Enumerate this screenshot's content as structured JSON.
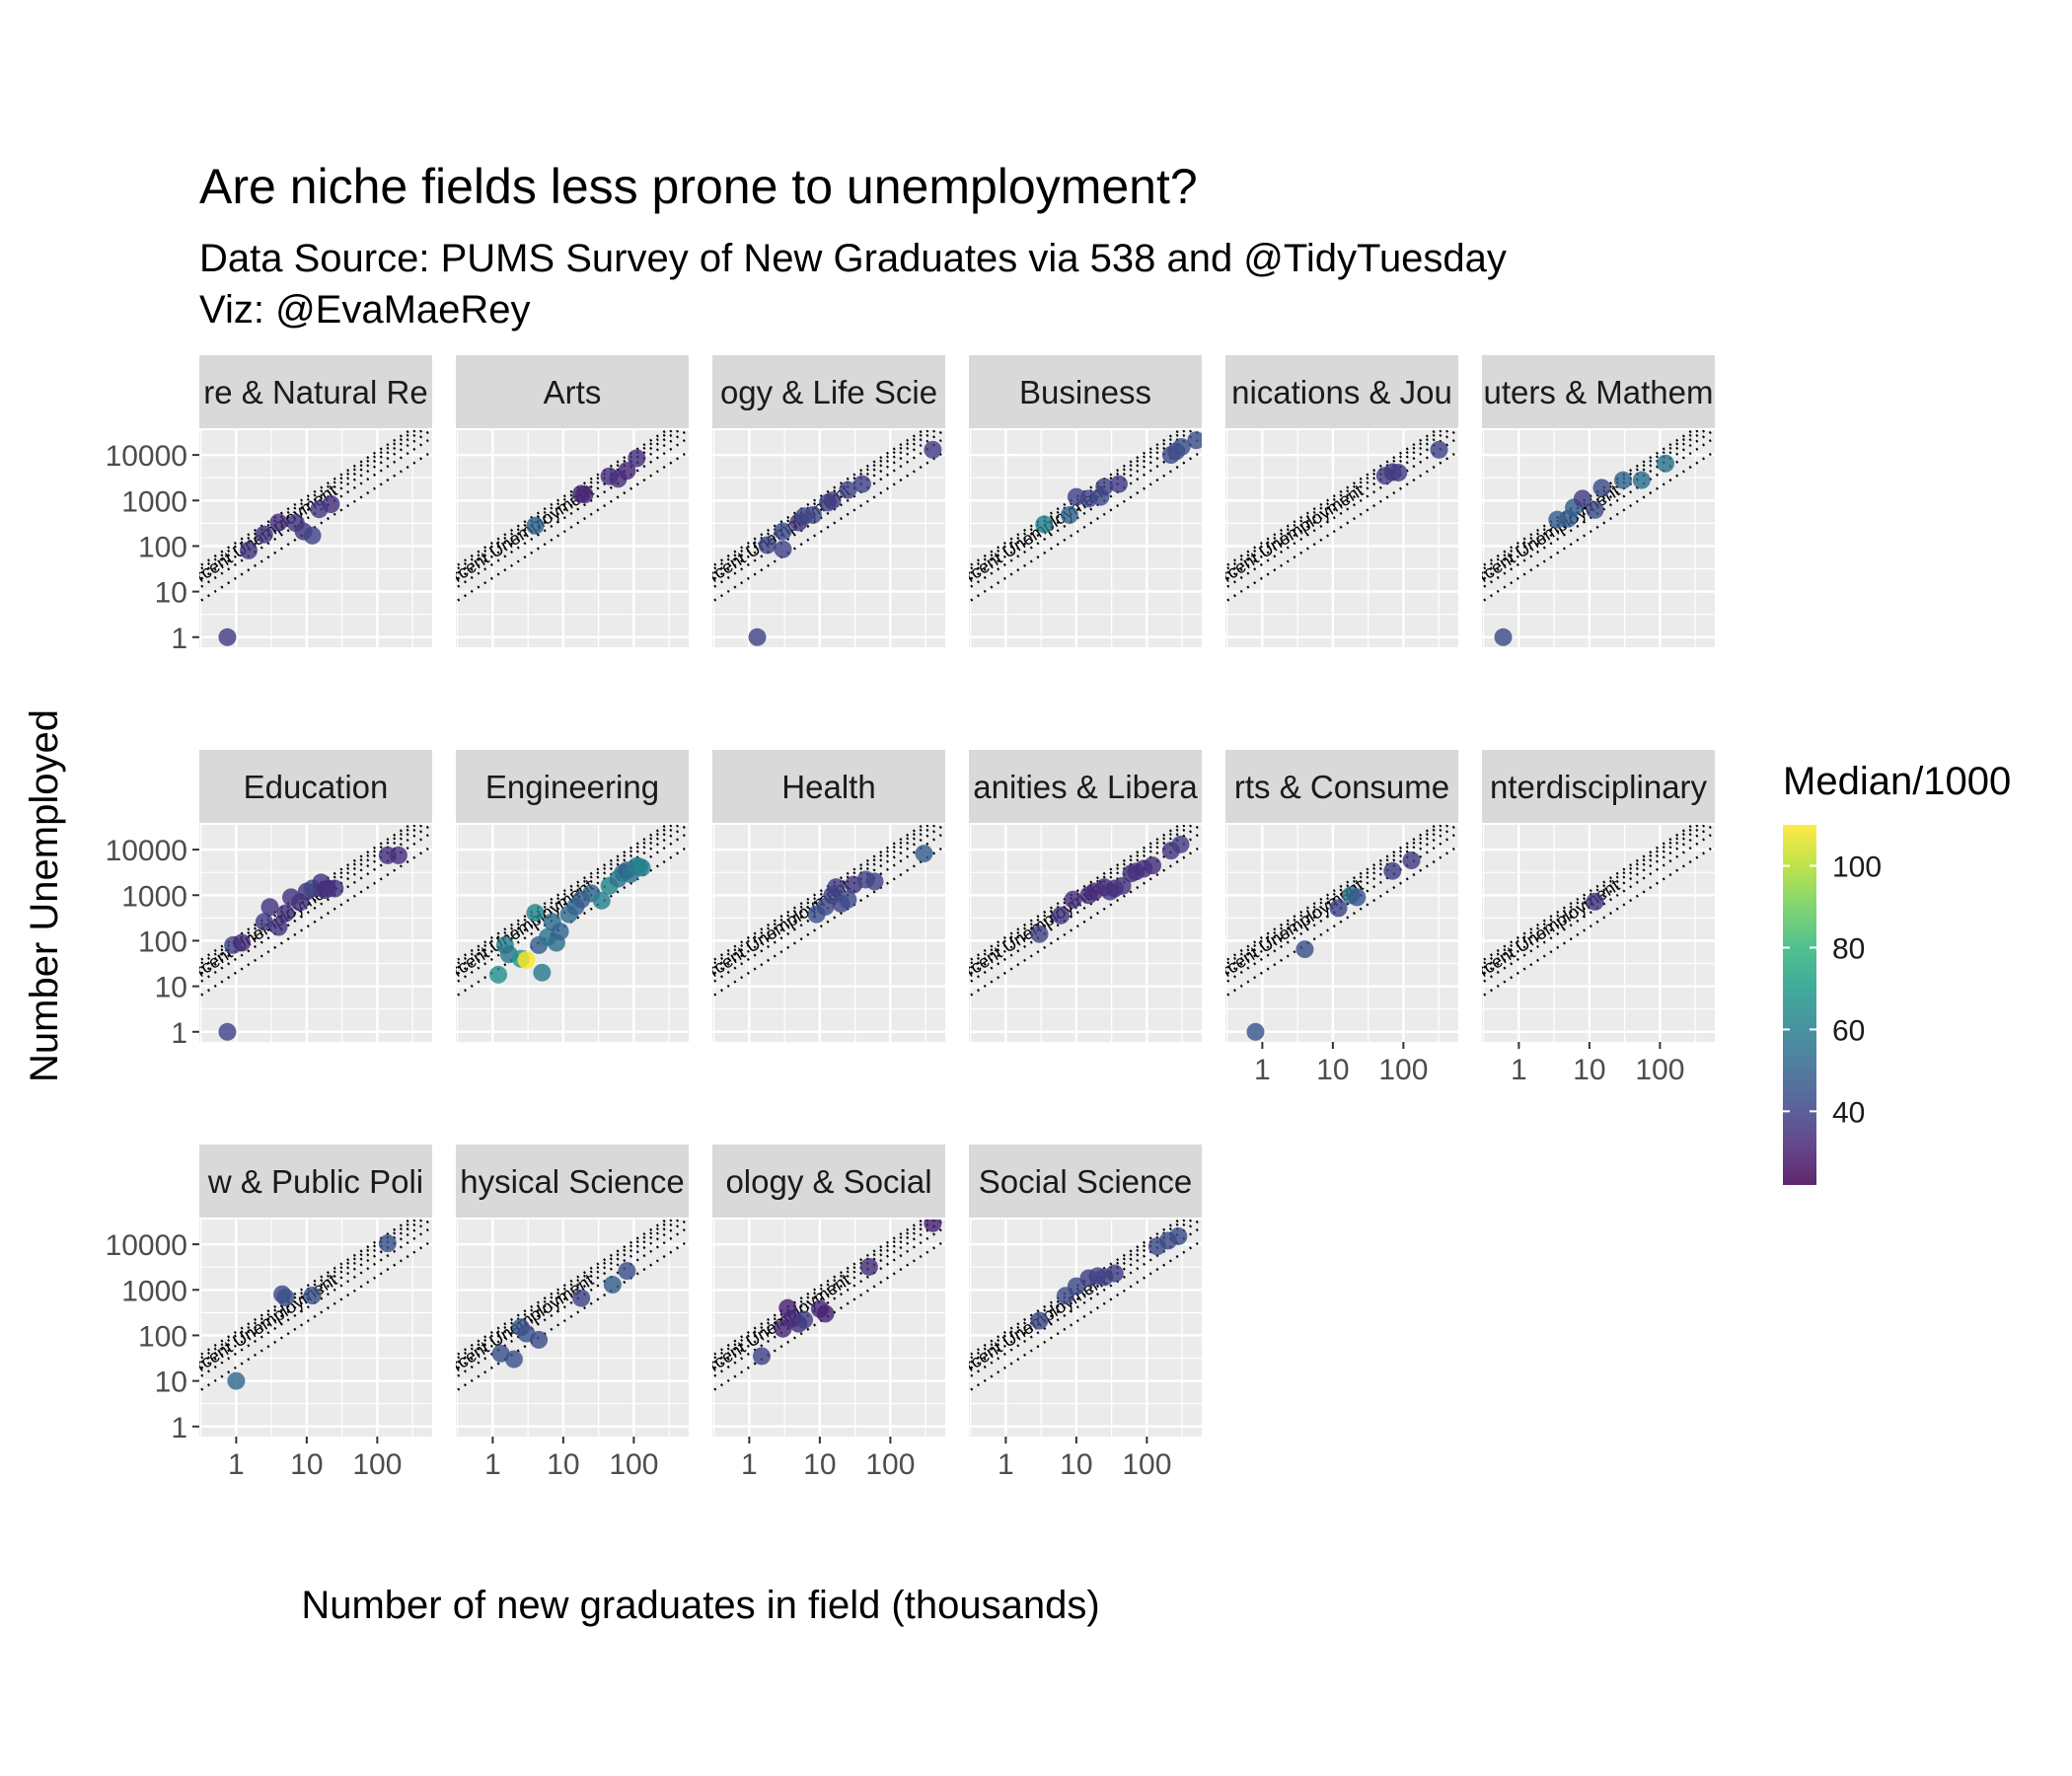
{
  "title": "Are niche fields less prone to unemployment?",
  "subtitle_lines": [
    "Data Source: PUMS Survey of New Graduates via 538 and @TidyTuesday",
    "Viz: @EvaMaeRey"
  ],
  "chart_data": {
    "type": "scatter",
    "xlabel": "Number of new graduates in field (thousands)",
    "ylabel": "Number Unemployed",
    "x_scale": "log10",
    "y_scale": "log10",
    "xlim": [
      0.3,
      600
    ],
    "ylim": [
      0.6,
      35000
    ],
    "x_ticks": [
      1,
      10,
      100
    ],
    "x_tick_labels": [
      "1",
      "10",
      "100"
    ],
    "y_ticks": [
      1,
      10,
      100,
      1000,
      10000
    ],
    "y_tick_labels": [
      "1",
      "10",
      "100",
      "1000",
      "10000"
    ],
    "grid": true,
    "reference_lines_label": "Percent Unemployment",
    "reference_rates_percent": [
      2,
      4,
      6,
      8,
      10,
      12
    ],
    "color_legend": {
      "title": "Median/1000",
      "ticks": [
        40,
        60,
        80,
        100
      ],
      "range": [
        22,
        110
      ],
      "position": "right",
      "colors": [
        "#440154",
        "#3b528b",
        "#21908c",
        "#5dc863",
        "#fde725"
      ]
    },
    "panels": [
      {
        "label": "Agriculture & Natural Resources",
        "visible_label": "re & Natural Re",
        "points": [
          [
            0.75,
            1,
            38
          ],
          [
            1.5,
            80,
            36
          ],
          [
            2.5,
            180,
            36
          ],
          [
            4,
            330,
            34
          ],
          [
            7,
            320,
            36
          ],
          [
            9,
            210,
            36
          ],
          [
            12,
            170,
            40
          ],
          [
            15,
            640,
            38
          ],
          [
            22,
            830,
            34
          ]
        ]
      },
      {
        "label": "Arts",
        "visible_label": "Arts",
        "points": [
          [
            4,
            280,
            50
          ],
          [
            18,
            1400,
            30
          ],
          [
            20,
            1350,
            32
          ],
          [
            45,
            3400,
            34
          ],
          [
            60,
            3000,
            34
          ],
          [
            80,
            4500,
            32
          ],
          [
            110,
            8500,
            34
          ]
        ]
      },
      {
        "label": "Biology & Life Science",
        "visible_label": "ogy & Life Scie",
        "points": [
          [
            1.3,
            1,
            40
          ],
          [
            1.8,
            105,
            40
          ],
          [
            3,
            210,
            42
          ],
          [
            3,
            85,
            40
          ],
          [
            5,
            330,
            36
          ],
          [
            6,
            450,
            40
          ],
          [
            8,
            480,
            42
          ],
          [
            13,
            900,
            40
          ],
          [
            15,
            1000,
            38
          ],
          [
            25,
            1700,
            40
          ],
          [
            40,
            2300,
            40
          ],
          [
            400,
            13000,
            38
          ]
        ]
      },
      {
        "label": "Business",
        "visible_label": "Business",
        "points": [
          [
            3.5,
            300,
            60
          ],
          [
            8,
            480,
            50
          ],
          [
            10,
            1200,
            40
          ],
          [
            15,
            1100,
            40
          ],
          [
            22,
            1200,
            42
          ],
          [
            25,
            2000,
            40
          ],
          [
            40,
            2300,
            38
          ],
          [
            220,
            10000,
            42
          ],
          [
            260,
            12000,
            42
          ],
          [
            310,
            15000,
            44
          ],
          [
            500,
            21000,
            44
          ]
        ]
      },
      {
        "label": "Communications & Journalism",
        "visible_label": "nications & Jou",
        "points": [
          [
            55,
            3500,
            38
          ],
          [
            70,
            4200,
            38
          ],
          [
            85,
            4100,
            38
          ],
          [
            320,
            13000,
            40
          ]
        ]
      },
      {
        "label": "Computers & Mathematics",
        "visible_label": "uters & Mathem",
        "points": [
          [
            0.6,
            1,
            42
          ],
          [
            3.5,
            380,
            48
          ],
          [
            5,
            400,
            48
          ],
          [
            6,
            700,
            48
          ],
          [
            8,
            1100,
            38
          ],
          [
            12,
            620,
            42
          ],
          [
            15,
            1900,
            42
          ],
          [
            30,
            2800,
            50
          ],
          [
            55,
            2800,
            54
          ],
          [
            120,
            6500,
            56
          ]
        ]
      },
      {
        "label": "Education",
        "visible_label": "Education",
        "points": [
          [
            0.75,
            1,
            40
          ],
          [
            0.9,
            80,
            40
          ],
          [
            1.2,
            90,
            34
          ],
          [
            2.5,
            260,
            38
          ],
          [
            3,
            550,
            36
          ],
          [
            4,
            200,
            36
          ],
          [
            5,
            400,
            34
          ],
          [
            6,
            900,
            36
          ],
          [
            8,
            700,
            36
          ],
          [
            10,
            1200,
            36
          ],
          [
            12,
            1400,
            40
          ],
          [
            16,
            1900,
            36
          ],
          [
            18,
            1300,
            34
          ],
          [
            20,
            1400,
            34
          ],
          [
            25,
            1400,
            36
          ],
          [
            140,
            7500,
            34
          ],
          [
            200,
            7500,
            34
          ]
        ]
      },
      {
        "label": "Engineering",
        "visible_label": "Engineering",
        "points": [
          [
            1.2,
            18,
            66
          ],
          [
            1.5,
            80,
            60
          ],
          [
            1.7,
            50,
            56
          ],
          [
            2.5,
            40,
            68
          ],
          [
            3,
            38,
            110
          ],
          [
            4,
            410,
            62
          ],
          [
            4.5,
            80,
            48
          ],
          [
            5,
            20,
            58
          ],
          [
            6,
            120,
            56
          ],
          [
            7,
            260,
            52
          ],
          [
            8,
            90,
            54
          ],
          [
            9,
            160,
            50
          ],
          [
            12,
            380,
            52
          ],
          [
            15,
            560,
            50
          ],
          [
            18,
            800,
            48
          ],
          [
            25,
            1100,
            50
          ],
          [
            35,
            760,
            60
          ],
          [
            45,
            1600,
            62
          ],
          [
            60,
            2300,
            56
          ],
          [
            70,
            3100,
            58
          ],
          [
            80,
            3500,
            48
          ],
          [
            90,
            2900,
            56
          ],
          [
            110,
            4400,
            62
          ],
          [
            120,
            4200,
            56
          ],
          [
            130,
            4000,
            62
          ]
        ]
      },
      {
        "label": "Health",
        "visible_label": "Health",
        "points": [
          [
            9,
            380,
            44
          ],
          [
            12,
            560,
            42
          ],
          [
            15,
            1000,
            40
          ],
          [
            17,
            1500,
            38
          ],
          [
            20,
            650,
            40
          ],
          [
            25,
            800,
            42
          ],
          [
            30,
            1700,
            36
          ],
          [
            45,
            2200,
            40
          ],
          [
            60,
            2000,
            40
          ],
          [
            300,
            8200,
            48
          ]
        ]
      },
      {
        "label": "Humanities & Liberal Arts",
        "visible_label": "anities & Libera",
        "points": [
          [
            3,
            140,
            40
          ],
          [
            6,
            360,
            36
          ],
          [
            9,
            800,
            34
          ],
          [
            15,
            1000,
            34
          ],
          [
            18,
            1200,
            32
          ],
          [
            25,
            1500,
            34
          ],
          [
            30,
            1200,
            36
          ],
          [
            35,
            1400,
            34
          ],
          [
            45,
            1600,
            36
          ],
          [
            60,
            3000,
            34
          ],
          [
            70,
            3300,
            34
          ],
          [
            90,
            3800,
            34
          ],
          [
            120,
            4500,
            34
          ],
          [
            220,
            9500,
            36
          ],
          [
            300,
            13000,
            38
          ]
        ]
      },
      {
        "label": "Industrial Arts & Consumer Services",
        "visible_label": "rts & Consume",
        "points": [
          [
            0.8,
            1,
            46
          ],
          [
            4,
            65,
            44
          ],
          [
            12,
            520,
            40
          ],
          [
            18,
            1000,
            56
          ],
          [
            22,
            900,
            46
          ],
          [
            70,
            3400,
            38
          ],
          [
            130,
            5800,
            38
          ]
        ]
      },
      {
        "label": "Interdisciplinary",
        "visible_label": "nterdisciplinary",
        "points": [
          [
            12,
            720,
            36
          ]
        ]
      },
      {
        "label": "Law & Public Policy",
        "visible_label": "w & Public Poli",
        "points": [
          [
            1,
            10,
            52
          ],
          [
            4.5,
            800,
            42
          ],
          [
            5,
            680,
            44
          ],
          [
            12,
            750,
            44
          ],
          [
            140,
            10500,
            44
          ]
        ]
      },
      {
        "label": "Physical Sciences",
        "visible_label": "hysical Science",
        "points": [
          [
            1.3,
            40,
            44
          ],
          [
            2,
            30,
            44
          ],
          [
            2.5,
            150,
            46
          ],
          [
            3,
            110,
            44
          ],
          [
            4.5,
            80,
            42
          ],
          [
            18,
            660,
            40
          ],
          [
            50,
            1300,
            48
          ],
          [
            80,
            2600,
            44
          ]
        ]
      },
      {
        "label": "Psychology & Social Work",
        "visible_label": "ology & Social ",
        "points": [
          [
            1.5,
            35,
            40
          ],
          [
            3,
            140,
            32
          ],
          [
            3.5,
            400,
            30
          ],
          [
            4,
            230,
            32
          ],
          [
            5,
            180,
            34
          ],
          [
            6,
            220,
            38
          ],
          [
            10,
            380,
            32
          ],
          [
            12,
            300,
            30
          ],
          [
            50,
            3200,
            34
          ],
          [
            400,
            29000,
            30
          ]
        ]
      },
      {
        "label": "Social Science",
        "visible_label": "Social Science",
        "points": [
          [
            3,
            210,
            42
          ],
          [
            7,
            740,
            42
          ],
          [
            10,
            1200,
            42
          ],
          [
            15,
            1800,
            38
          ],
          [
            20,
            2000,
            40
          ],
          [
            25,
            1900,
            40
          ],
          [
            35,
            2300,
            38
          ],
          [
            140,
            9000,
            42
          ],
          [
            200,
            12000,
            42
          ],
          [
            280,
            15000,
            42
          ]
        ]
      }
    ]
  }
}
